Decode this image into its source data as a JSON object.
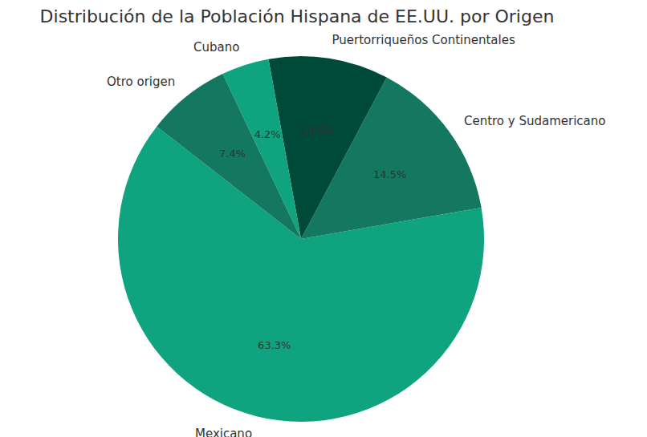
{
  "chart_data": {
    "type": "pie",
    "title": "Distribución de la Población Hispana de EE.UU. por Origen",
    "categories": [
      "Mexicano",
      "Centro y Sudamericano",
      "Puertorriqueños Continentales",
      "Cubano",
      "Otro origen"
    ],
    "values": [
      63.3,
      14.5,
      10.6,
      4.2,
      7.4
    ],
    "value_labels": [
      "63.3%",
      "14.5%",
      "10.6%",
      "4.2%",
      "7.4%"
    ],
    "colors": [
      "#10a37f",
      "#13785f",
      "#004a3a",
      "#10a37f",
      "#13785f"
    ]
  }
}
